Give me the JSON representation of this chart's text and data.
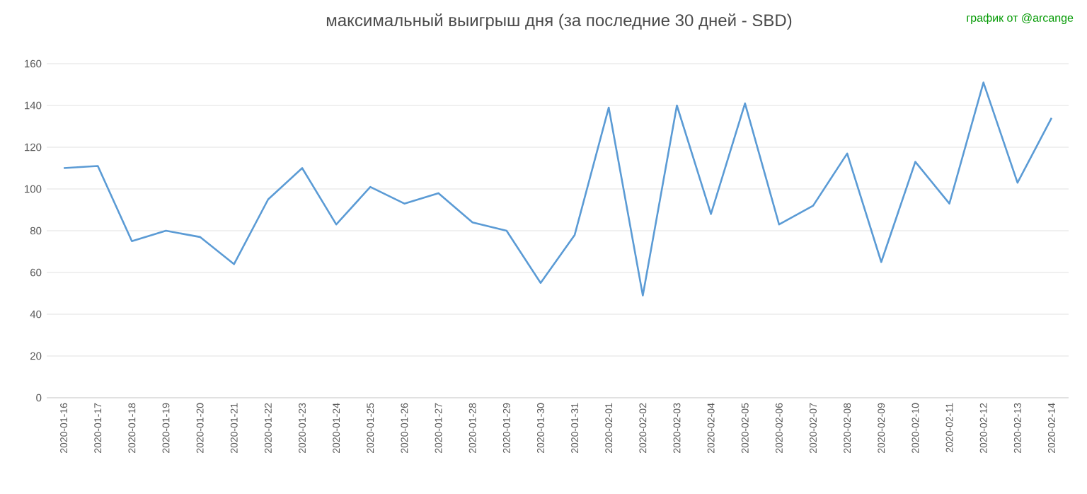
{
  "chart_data": {
    "type": "line",
    "title": "максимальный выигрыш дня (за последние 30 дней - SBD)",
    "annotations": [
      "график от @arcange"
    ],
    "categories": [
      "2020-01-16",
      "2020-01-17",
      "2020-01-18",
      "2020-01-19",
      "2020-01-20",
      "2020-01-21",
      "2020-01-22",
      "2020-01-23",
      "2020-01-24",
      "2020-01-25",
      "2020-01-26",
      "2020-01-27",
      "2020-01-28",
      "2020-01-29",
      "2020-01-30",
      "2020-01-31",
      "2020-02-01",
      "2020-02-02",
      "2020-02-03",
      "2020-02-04",
      "2020-02-05",
      "2020-02-06",
      "2020-02-07",
      "2020-02-08",
      "2020-02-09",
      "2020-02-10",
      "2020-02-11",
      "2020-02-12",
      "2020-02-13",
      "2020-02-14"
    ],
    "series": [
      {
        "color": "#5b9bd5",
        "values": [
          110,
          111,
          75,
          80,
          77,
          64,
          95,
          110,
          83,
          101,
          93,
          98,
          84,
          80,
          55,
          78,
          139,
          49,
          140,
          88,
          141,
          83,
          92,
          117,
          65,
          113,
          93,
          151,
          103,
          134
        ]
      }
    ],
    "ylim": [
      0,
      160
    ],
    "yticks": [
      0,
      20,
      40,
      60,
      80,
      100,
      120,
      140,
      160
    ],
    "grid": "y",
    "marker": "none",
    "line_style": "solid"
  }
}
